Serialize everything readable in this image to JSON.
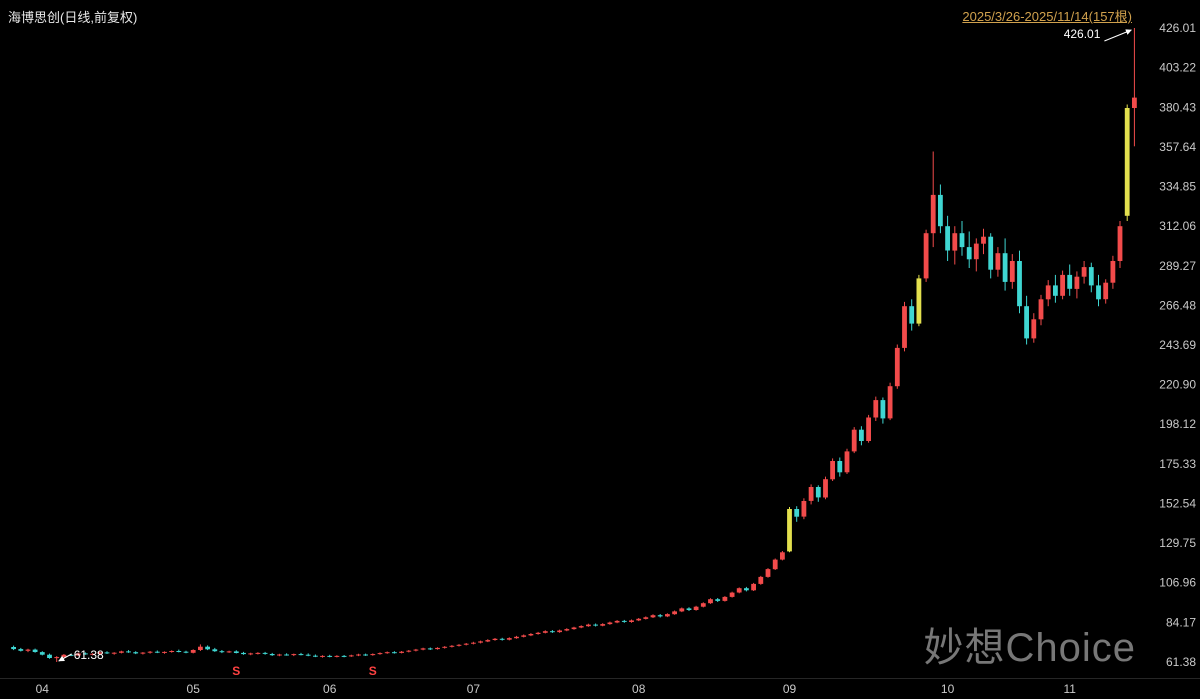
{
  "header": {
    "title": "海博思创(日线,前复权)",
    "range": "2025/3/26-2025/11/14(157根)"
  },
  "watermark": "妙想Choice",
  "chart_data": {
    "type": "candlestick",
    "title": "海博思创 日线 前复权",
    "xlabel": "",
    "ylabel": "",
    "ylim": [
      61.38,
      426.01
    ],
    "grid": false,
    "y_axis": {
      "side": "right",
      "labels": [
        "426.01",
        "403.22",
        "380.43",
        "357.64",
        "334.85",
        "312.06",
        "289.27",
        "266.48",
        "243.69",
        "220.90",
        "198.12",
        "175.33",
        "152.54",
        "129.75",
        "106.96",
        "84.17",
        "61.38"
      ]
    },
    "x_axis": {
      "months": [
        {
          "label": "04",
          "bar": 4
        },
        {
          "label": "05",
          "bar": 25
        },
        {
          "label": "06",
          "bar": 44
        },
        {
          "label": "07",
          "bar": 64
        },
        {
          "label": "08",
          "bar": 87
        },
        {
          "label": "09",
          "bar": 108
        },
        {
          "label": "10",
          "bar": 130
        },
        {
          "label": "11",
          "bar": 147
        }
      ]
    },
    "annotations": {
      "high": {
        "bar": 156,
        "value": "426.01"
      },
      "low": {
        "bar": 6,
        "value": "61.38"
      }
    },
    "event_markers": [
      {
        "bar": 31,
        "label": "S"
      },
      {
        "bar": 50,
        "label": "S"
      }
    ],
    "colors": {
      "up": "#f24b4b",
      "down": "#3fd6d2",
      "special": "#e3e04e",
      "background": "#000000",
      "axis_text": "#c9c9c9",
      "range_text": "#d0a14d",
      "annotation_text": "#ffffff",
      "watermark": "#8c8c8c",
      "marker": "#ff4242"
    },
    "special_bars": [
      108,
      126,
      155
    ],
    "ohlc": [
      [
        70.0,
        70.8,
        68.2,
        68.8
      ],
      [
        68.8,
        69.5,
        67.4,
        67.8
      ],
      [
        67.8,
        69.0,
        67.1,
        68.5
      ],
      [
        68.5,
        69.1,
        66.7,
        67.1
      ],
      [
        67.1,
        67.6,
        65.2,
        65.6
      ],
      [
        65.6,
        66.2,
        63.3,
        63.7
      ],
      [
        63.7,
        64.8,
        61.38,
        64.2
      ],
      [
        64.2,
        66.0,
        63.8,
        65.5
      ],
      [
        65.5,
        66.2,
        64.8,
        65.1
      ],
      [
        65.1,
        66.7,
        64.9,
        66.3
      ],
      [
        66.3,
        66.9,
        65.5,
        65.8
      ],
      [
        65.8,
        66.5,
        65.2,
        66.1
      ],
      [
        66.1,
        67.3,
        65.7,
        66.9
      ],
      [
        66.9,
        67.6,
        66.0,
        66.4
      ],
      [
        66.4,
        67.0,
        65.6,
        66.7
      ],
      [
        66.7,
        67.9,
        66.3,
        67.5
      ],
      [
        67.5,
        68.2,
        66.6,
        67.0
      ],
      [
        67.0,
        67.6,
        65.9,
        66.3
      ],
      [
        66.3,
        67.1,
        65.7,
        66.8
      ],
      [
        66.8,
        67.7,
        66.2,
        67.3
      ],
      [
        67.3,
        68.0,
        66.5,
        66.8
      ],
      [
        66.8,
        67.5,
        66.1,
        67.2
      ],
      [
        67.2,
        68.1,
        66.7,
        67.7
      ],
      [
        67.7,
        68.5,
        66.9,
        67.3
      ],
      [
        67.3,
        67.9,
        66.4,
        66.7
      ],
      [
        66.7,
        68.7,
        66.3,
        68.3
      ],
      [
        68.3,
        71.5,
        67.7,
        70.2
      ],
      [
        70.2,
        70.9,
        68.2,
        68.7
      ],
      [
        68.7,
        69.5,
        67.2,
        67.6
      ],
      [
        67.6,
        68.3,
        66.5,
        67.0
      ],
      [
        67.0,
        67.9,
        66.6,
        67.5
      ],
      [
        67.5,
        68.1,
        66.3,
        66.6
      ],
      [
        66.6,
        67.2,
        65.5,
        65.9
      ],
      [
        65.9,
        66.7,
        65.3,
        66.3
      ],
      [
        66.3,
        67.0,
        65.7,
        66.6
      ],
      [
        66.6,
        67.2,
        65.6,
        66.0
      ],
      [
        66.0,
        66.6,
        64.9,
        65.3
      ],
      [
        65.3,
        66.1,
        64.7,
        65.7
      ],
      [
        65.7,
        66.4,
        65.0,
        65.4
      ],
      [
        65.4,
        66.2,
        64.8,
        65.9
      ],
      [
        65.9,
        66.6,
        65.2,
        65.6
      ],
      [
        65.6,
        66.3,
        64.7,
        65.0
      ],
      [
        65.0,
        65.7,
        64.2,
        64.6
      ],
      [
        64.6,
        65.3,
        63.9,
        64.9
      ],
      [
        64.9,
        65.5,
        64.1,
        64.5
      ],
      [
        64.5,
        65.3,
        64.0,
        64.9
      ],
      [
        64.9,
        65.4,
        64.1,
        64.6
      ],
      [
        64.6,
        65.6,
        64.3,
        65.2
      ],
      [
        65.2,
        66.1,
        64.8,
        65.7
      ],
      [
        65.7,
        66.2,
        64.9,
        65.3
      ],
      [
        65.3,
        66.3,
        65.0,
        65.9
      ],
      [
        65.9,
        66.9,
        65.6,
        66.5
      ],
      [
        66.5,
        67.4,
        66.1,
        67.0
      ],
      [
        67.0,
        67.6,
        66.2,
        66.6
      ],
      [
        66.6,
        67.7,
        66.3,
        67.3
      ],
      [
        67.3,
        68.3,
        66.9,
        67.9
      ],
      [
        67.9,
        68.9,
        67.5,
        68.5
      ],
      [
        68.5,
        69.6,
        68.1,
        69.2
      ],
      [
        69.2,
        69.7,
        68.3,
        68.8
      ],
      [
        68.8,
        69.9,
        68.5,
        69.5
      ],
      [
        69.5,
        70.5,
        69.1,
        70.1
      ],
      [
        70.1,
        71.1,
        69.7,
        70.7
      ],
      [
        70.7,
        71.7,
        70.3,
        71.3
      ],
      [
        71.3,
        72.3,
        70.9,
        71.9
      ],
      [
        71.9,
        73.0,
        71.5,
        72.5
      ],
      [
        72.5,
        73.7,
        72.1,
        73.2
      ],
      [
        73.2,
        74.5,
        72.8,
        74.0
      ],
      [
        74.0,
        75.2,
        73.6,
        74.7
      ],
      [
        74.7,
        75.3,
        73.7,
        74.2
      ],
      [
        74.2,
        75.6,
        73.8,
        75.1
      ],
      [
        75.1,
        76.4,
        74.7,
        75.9
      ],
      [
        75.9,
        77.2,
        75.5,
        76.7
      ],
      [
        76.7,
        78.0,
        76.3,
        77.5
      ],
      [
        77.5,
        78.7,
        77.1,
        78.2
      ],
      [
        78.2,
        79.6,
        77.8,
        79.1
      ],
      [
        79.1,
        79.7,
        78.1,
        78.6
      ],
      [
        78.6,
        80.0,
        78.2,
        79.5
      ],
      [
        79.5,
        80.8,
        79.1,
        80.3
      ],
      [
        80.3,
        81.7,
        79.9,
        81.2
      ],
      [
        81.2,
        82.5,
        80.8,
        82.0
      ],
      [
        82.0,
        83.4,
        81.6,
        82.9
      ],
      [
        82.9,
        83.5,
        81.8,
        82.3
      ],
      [
        82.3,
        83.7,
        81.9,
        83.2
      ],
      [
        83.2,
        84.6,
        82.8,
        84.1
      ],
      [
        84.1,
        85.5,
        83.7,
        85.0
      ],
      [
        85.0,
        85.6,
        83.9,
        84.4
      ],
      [
        84.4,
        85.8,
        84.0,
        85.3
      ],
      [
        85.3,
        86.7,
        84.9,
        86.2
      ],
      [
        86.2,
        87.6,
        85.8,
        87.1
      ],
      [
        87.1,
        88.8,
        86.7,
        88.3
      ],
      [
        88.3,
        89.0,
        87.0,
        87.6
      ],
      [
        87.6,
        89.4,
        87.2,
        88.9
      ],
      [
        88.9,
        91.0,
        88.5,
        90.5
      ],
      [
        90.5,
        92.7,
        90.1,
        92.2
      ],
      [
        92.2,
        92.9,
        90.7,
        91.3
      ],
      [
        91.3,
        93.7,
        90.9,
        93.2
      ],
      [
        93.2,
        95.7,
        92.8,
        95.2
      ],
      [
        95.2,
        98.0,
        94.8,
        97.5
      ],
      [
        97.5,
        98.2,
        95.9,
        96.5
      ],
      [
        96.5,
        99.3,
        96.1,
        98.8
      ],
      [
        98.8,
        101.8,
        98.4,
        101.3
      ],
      [
        101.3,
        104.3,
        100.9,
        103.8
      ],
      [
        103.8,
        104.6,
        102.0,
        102.6
      ],
      [
        102.6,
        106.9,
        102.2,
        106.3
      ],
      [
        106.3,
        110.9,
        105.8,
        110.3
      ],
      [
        110.3,
        115.4,
        109.8,
        114.8
      ],
      [
        114.8,
        120.9,
        114.3,
        120.3
      ],
      [
        120.3,
        125.2,
        119.8,
        124.5
      ],
      [
        125.0,
        150.5,
        124.5,
        149.4
      ],
      [
        149.4,
        151.0,
        142.0,
        145.0
      ],
      [
        145.0,
        155.5,
        143.5,
        154.0
      ],
      [
        154.0,
        163.5,
        152.0,
        162.0
      ],
      [
        162.0,
        163.0,
        153.5,
        156.0
      ],
      [
        156.0,
        168.0,
        155.0,
        166.5
      ],
      [
        166.5,
        178.5,
        165.5,
        177.0
      ],
      [
        177.0,
        179.0,
        168.0,
        170.5
      ],
      [
        170.5,
        184.0,
        169.5,
        182.5
      ],
      [
        182.5,
        196.5,
        181.5,
        195.0
      ],
      [
        195.0,
        197.0,
        186.0,
        188.5
      ],
      [
        188.5,
        203.5,
        187.5,
        202.0
      ],
      [
        202.0,
        214.0,
        200.0,
        212.0
      ],
      [
        212.0,
        213.5,
        198.5,
        201.5
      ],
      [
        201.5,
        222.0,
        200.5,
        220.0
      ],
      [
        220.0,
        244.0,
        218.5,
        242.0
      ],
      [
        242.0,
        268.5,
        240.0,
        266.0
      ],
      [
        266.0,
        270.0,
        252.0,
        256.0
      ],
      [
        256.0,
        284.0,
        254.5,
        282.0
      ],
      [
        282.0,
        310.0,
        280.0,
        308.0
      ],
      [
        308.0,
        355.0,
        300.0,
        330.0
      ],
      [
        330.0,
        336.0,
        308.0,
        312.0
      ],
      [
        312.0,
        318.0,
        292.0,
        298.0
      ],
      [
        298.0,
        312.0,
        290.0,
        308.0
      ],
      [
        308.0,
        315.0,
        295.0,
        300.0
      ],
      [
        300.0,
        309.0,
        288.0,
        293.0
      ],
      [
        293.0,
        305.0,
        286.0,
        302.0
      ],
      [
        302.0,
        310.5,
        296.0,
        306.0
      ],
      [
        306.0,
        308.0,
        282.0,
        287.0
      ],
      [
        287.0,
        300.0,
        283.0,
        296.5
      ],
      [
        296.5,
        305.0,
        275.0,
        280.0
      ],
      [
        280.0,
        296.0,
        276.0,
        292.0
      ],
      [
        292.0,
        298.0,
        262.0,
        266.0
      ],
      [
        266.0,
        272.0,
        244.0,
        247.5
      ],
      [
        247.5,
        262.0,
        245.0,
        258.5
      ],
      [
        258.5,
        272.5,
        255.0,
        270.0
      ],
      [
        270.0,
        281.0,
        266.0,
        278.0
      ],
      [
        278.0,
        284.0,
        268.0,
        272.0
      ],
      [
        272.0,
        286.5,
        270.0,
        284.0
      ],
      [
        284.0,
        290.0,
        272.0,
        276.0
      ],
      [
        276.0,
        286.0,
        270.5,
        283.0
      ],
      [
        283.0,
        292.0,
        279.0,
        288.5
      ],
      [
        288.5,
        291.0,
        274.0,
        278.0
      ],
      [
        278.0,
        284.0,
        266.0,
        270.0
      ],
      [
        270.0,
        281.5,
        267.5,
        279.5
      ],
      [
        279.5,
        295.0,
        276.0,
        292.0
      ],
      [
        292.0,
        315.0,
        288.0,
        312.0
      ],
      [
        318.0,
        382.0,
        315.0,
        380.0
      ],
      [
        380.0,
        426.01,
        358.0,
        386.0
      ]
    ]
  }
}
